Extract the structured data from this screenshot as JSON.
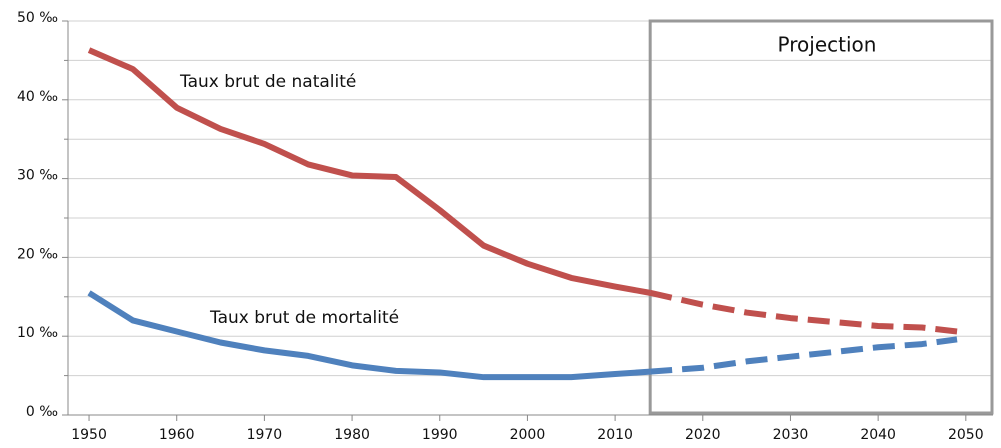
{
  "chart_data": {
    "type": "line",
    "annotations": [
      "Taux brut de natalité",
      "Taux brut de mortalité",
      "Projection"
    ],
    "projection_from": 2014,
    "xlim": [
      1947.6,
      2053.1
    ],
    "xticks": [
      1950,
      1960,
      1970,
      1980,
      1990,
      2000,
      2010,
      2020,
      2030,
      2040,
      2050
    ],
    "ylim": [
      0,
      50
    ],
    "yticks": [
      {
        "value": 0,
        "label": "0 ‰"
      },
      {
        "value": 10,
        "label": "10 ‰"
      },
      {
        "value": 20,
        "label": "20 ‰"
      },
      {
        "value": 30,
        "label": "30 ‰"
      },
      {
        "value": 40,
        "label": "40 ‰"
      },
      {
        "value": 50,
        "label": "50 ‰"
      }
    ],
    "yminor_ticks": [
      5,
      15,
      25,
      35,
      45
    ],
    "grid": true,
    "series": [
      {
        "name": "Taux brut de natalité",
        "color": "#c0504d",
        "x": [
          1950,
          1955,
          1960,
          1965,
          1970,
          1975,
          1980,
          1985,
          1990,
          1995,
          2000,
          2005,
          2010,
          2014,
          2020,
          2025,
          2030,
          2035,
          2040,
          2045,
          2049
        ],
        "values": [
          46.3,
          43.9,
          39,
          36.3,
          34.4,
          31.8,
          30.4,
          30.2,
          26,
          21.5,
          19.2,
          17.4,
          16.3,
          15.5,
          14,
          13,
          12.3,
          11.8,
          11.3,
          11.1,
          10.6
        ]
      },
      {
        "name": "Taux brut de mortalité",
        "color": "#4f81bd",
        "x": [
          1950,
          1955,
          1960,
          1965,
          1970,
          1975,
          1980,
          1985,
          1990,
          1995,
          2000,
          2005,
          2010,
          2014,
          2020,
          2025,
          2030,
          2035,
          2040,
          2045,
          2049
        ],
        "values": [
          15.5,
          12,
          10.6,
          9.2,
          8.2,
          7.5,
          6.3,
          5.6,
          5.4,
          4.8,
          4.8,
          4.8,
          5.2,
          5.5,
          6,
          6.8,
          7.4,
          8,
          8.6,
          9,
          9.6
        ]
      }
    ]
  }
}
